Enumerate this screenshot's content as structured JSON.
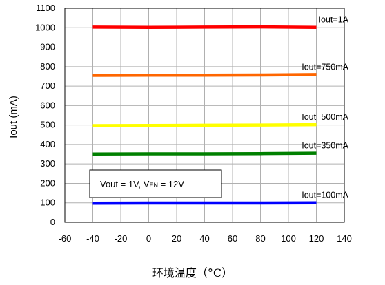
{
  "chart_data": {
    "type": "line",
    "title": "",
    "xlabel": "环境温度（°C）",
    "ylabel": "Iout (mA)",
    "xlim": [
      -60,
      140
    ],
    "ylim": [
      0,
      1100
    ],
    "xticks": [
      -60,
      -40,
      -20,
      0,
      20,
      40,
      60,
      80,
      100,
      120,
      140
    ],
    "yticks": [
      0,
      100,
      200,
      300,
      400,
      500,
      600,
      700,
      800,
      900,
      1000,
      1100
    ],
    "grid": true,
    "legend": "none",
    "annotation": {
      "pre": "Vout = 1V, V",
      "sub": "EN",
      "post": " = 12V"
    },
    "series": [
      {
        "name": "Iout=1A",
        "color": "#ff0000",
        "x": [
          -40,
          0,
          40,
          80,
          120
        ],
        "y": [
          1003,
          1002,
          1003,
          1004,
          1002
        ]
      },
      {
        "name": "Iout=750mA",
        "color": "#ff6600",
        "x": [
          -40,
          0,
          40,
          80,
          120
        ],
        "y": [
          755,
          756,
          756,
          757,
          759
        ]
      },
      {
        "name": "Iout=500mA",
        "color": "#ffff00",
        "x": [
          -40,
          0,
          40,
          80,
          120
        ],
        "y": [
          497,
          498,
          499,
          500,
          502
        ]
      },
      {
        "name": "Iout=350mA",
        "color": "#008000",
        "x": [
          -40,
          0,
          40,
          80,
          120
        ],
        "y": [
          351,
          352,
          352,
          353,
          355
        ]
      },
      {
        "name": "Iout=100mA",
        "color": "#0000ff",
        "x": [
          -40,
          0,
          40,
          80,
          120
        ],
        "y": [
          98,
          99,
          99,
          99,
          100
        ]
      }
    ]
  }
}
